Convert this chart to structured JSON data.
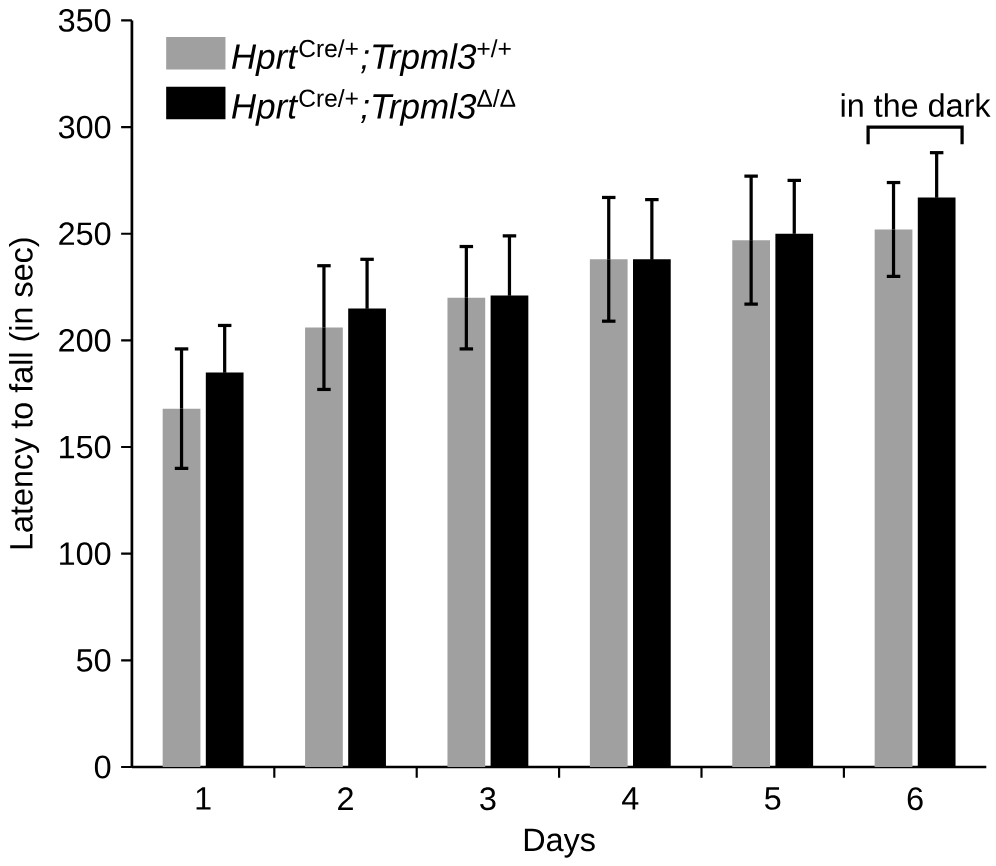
{
  "chart_data": {
    "type": "bar",
    "xlabel": "Days",
    "ylabel": "Latency to fall (in sec)",
    "categories": [
      "1",
      "2",
      "3",
      "4",
      "5",
      "6"
    ],
    "series": [
      {
        "name": "*Hprt*$^{Cre/+}$*;Trpml3*$^{+/+}$",
        "color": "#a0a0a0",
        "values": [
          168,
          206,
          220,
          238,
          247,
          252
        ],
        "errors": [
          28,
          29,
          24,
          29,
          30,
          22
        ]
      },
      {
        "name": "*Hprt*$^{Cre/+}$*;Trpml3*$^{Δ/Δ}$",
        "color": "#000000",
        "values": [
          185,
          215,
          221,
          238,
          250,
          267
        ],
        "errors": [
          22,
          23,
          28,
          28,
          25,
          21
        ]
      }
    ],
    "ylim": [
      0,
      350
    ],
    "yticks": [
      0,
      50,
      100,
      150,
      200,
      250,
      300,
      350
    ],
    "legend": "top left",
    "grid": false,
    "annotations": [
      "in the dark"
    ]
  }
}
